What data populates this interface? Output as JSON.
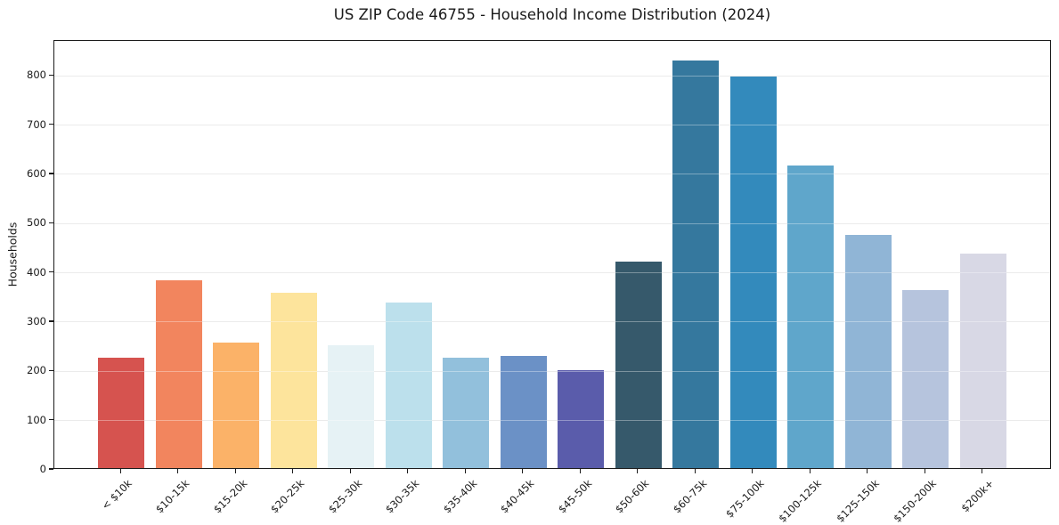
{
  "chart_data": {
    "type": "bar",
    "title": "US ZIP Code 46755 - Household Income Distribution (2024)",
    "xlabel": "",
    "ylabel": "Households",
    "categories": [
      "< $10k",
      "$10-15k",
      "$15-20k",
      "$20-25k",
      "$25-30k",
      "$30-35k",
      "$35-40k",
      "$40-45k",
      "$45-50k",
      "$50-60k",
      "$60-75k",
      "$75-100k",
      "$100-125k",
      "$125-150k",
      "$150-200k",
      "$200k+"
    ],
    "values": [
      225,
      382,
      255,
      356,
      250,
      337,
      225,
      228,
      198,
      420,
      828,
      795,
      615,
      473,
      362,
      436
    ],
    "bar_colors": [
      "#d6534f",
      "#f2855e",
      "#fbb268",
      "#fde49c",
      "#e6f2f5",
      "#bce0ec",
      "#92c0dc",
      "#6b91c6",
      "#5a5cab",
      "#36596b",
      "#35789e",
      "#338abc",
      "#5fa6cb",
      "#90b5d6",
      "#b6c4dd",
      "#d8d8e5"
    ],
    "ylim": [
      0,
      871
    ],
    "yticks": [
      0,
      100,
      200,
      300,
      400,
      500,
      600,
      700,
      800
    ],
    "grid": "horizontal",
    "legend": null,
    "colors": {
      "background": "#ffffff",
      "spine": "#1c1c1c",
      "gridline": "#e1e1e1",
      "text": "#1a1a1a"
    }
  }
}
